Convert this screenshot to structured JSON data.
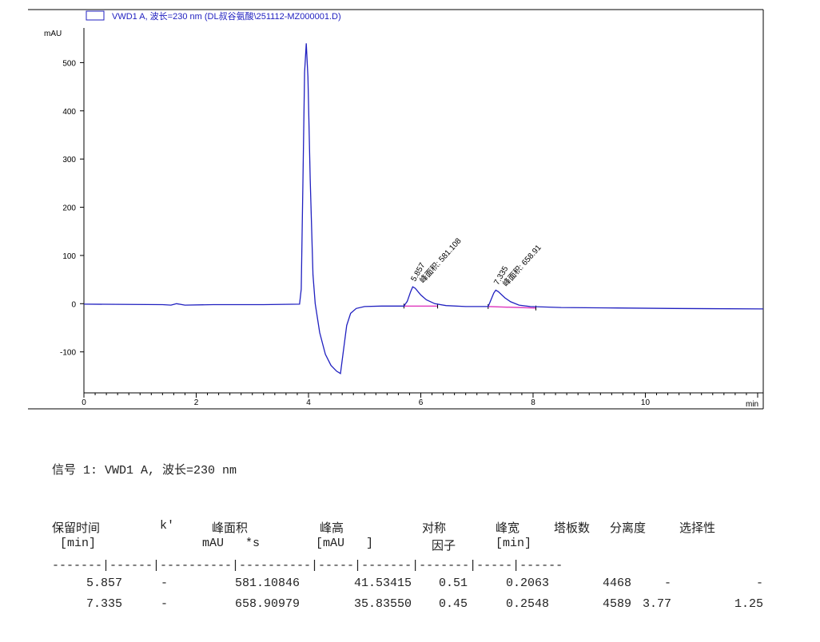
{
  "chart_data": {
    "type": "line",
    "legend": "VWD1 A, 波长=230 nm (DL叔谷氨酸\\251112-MZ000001.D)",
    "legend_placement": "top-left",
    "ylabel": "mAU",
    "xlabel": "min",
    "xlim": [
      0,
      12.1
    ],
    "ylim": [
      -185,
      610
    ],
    "x_ticks": [
      0,
      2,
      4,
      6,
      8,
      10
    ],
    "y_ticks": [
      -100,
      0,
      100,
      200,
      300,
      400,
      500
    ],
    "grid": false,
    "colors": {
      "trace": "#2020c0",
      "baseline": "#e040c0"
    },
    "series": [
      {
        "x": [
          0,
          1.4,
          1.55,
          1.65,
          1.8,
          2.3,
          3.2,
          3.84,
          3.87,
          3.9,
          3.93,
          3.96,
          3.99,
          4.03,
          4.08,
          4.12,
          4.2,
          4.3,
          4.4,
          4.5,
          4.57,
          4.62,
          4.68,
          4.75,
          4.85,
          5.0,
          5.3,
          5.7,
          5.76,
          5.82,
          5.857,
          5.9,
          6.0,
          6.1,
          6.25,
          6.45,
          6.8,
          7.2,
          7.24,
          7.3,
          7.335,
          7.38,
          7.5,
          7.6,
          7.75,
          7.95,
          8.5,
          9.5,
          10.5,
          12.1
        ],
        "y": [
          -1,
          -2,
          -3,
          0,
          -3,
          -2,
          -2,
          -1,
          30,
          250,
          480,
          540,
          470,
          260,
          60,
          0,
          -60,
          -105,
          -128,
          -140,
          -145,
          -100,
          -45,
          -20,
          -10,
          -6,
          -5,
          -5,
          5,
          25,
          35,
          32,
          18,
          8,
          0,
          -4,
          -6,
          -6,
          5,
          22,
          28,
          25,
          12,
          4,
          -3,
          -6,
          -8,
          -9,
          -10,
          -11
        ]
      }
    ],
    "peaks": [
      {
        "rt_label": "5.857",
        "area_label": "峰面积: 581.108",
        "rt": 5.857,
        "height": 35
      },
      {
        "rt_label": "7.335",
        "area_label": "峰面积: 658.91",
        "rt": 7.335,
        "height": 28
      }
    ],
    "baselines": [
      {
        "x": [
          5.7,
          6.3
        ],
        "y": [
          -5,
          -5
        ]
      },
      {
        "x": [
          7.2,
          8.05
        ],
        "y": [
          -6,
          -9
        ]
      }
    ]
  },
  "report": {
    "signal_title": "信号 1: VWD1 A, 波长=230 nm",
    "headers_line1": [
      "保留时间",
      "k'",
      "峰面积",
      "峰高",
      "对称",
      "峰宽",
      "塔板数",
      "分离度",
      "选择性"
    ],
    "headers_line2": [
      "[min]",
      "",
      "mAU   *s",
      "[mAU   ]",
      "因子",
      "[min]",
      "",
      "",
      ""
    ],
    "separator": "-------|------|----------|----------|-----|-------|-------|-----|------",
    "rows": [
      [
        "5.857",
        "-",
        "581.10846",
        "41.53415",
        "0.51",
        "0.2063",
        "4468",
        "-",
        "-"
      ],
      [
        "7.335",
        "-",
        "658.90979",
        "35.83550",
        "0.45",
        "0.2548",
        "4589",
        "3.77",
        "1.25"
      ]
    ]
  }
}
